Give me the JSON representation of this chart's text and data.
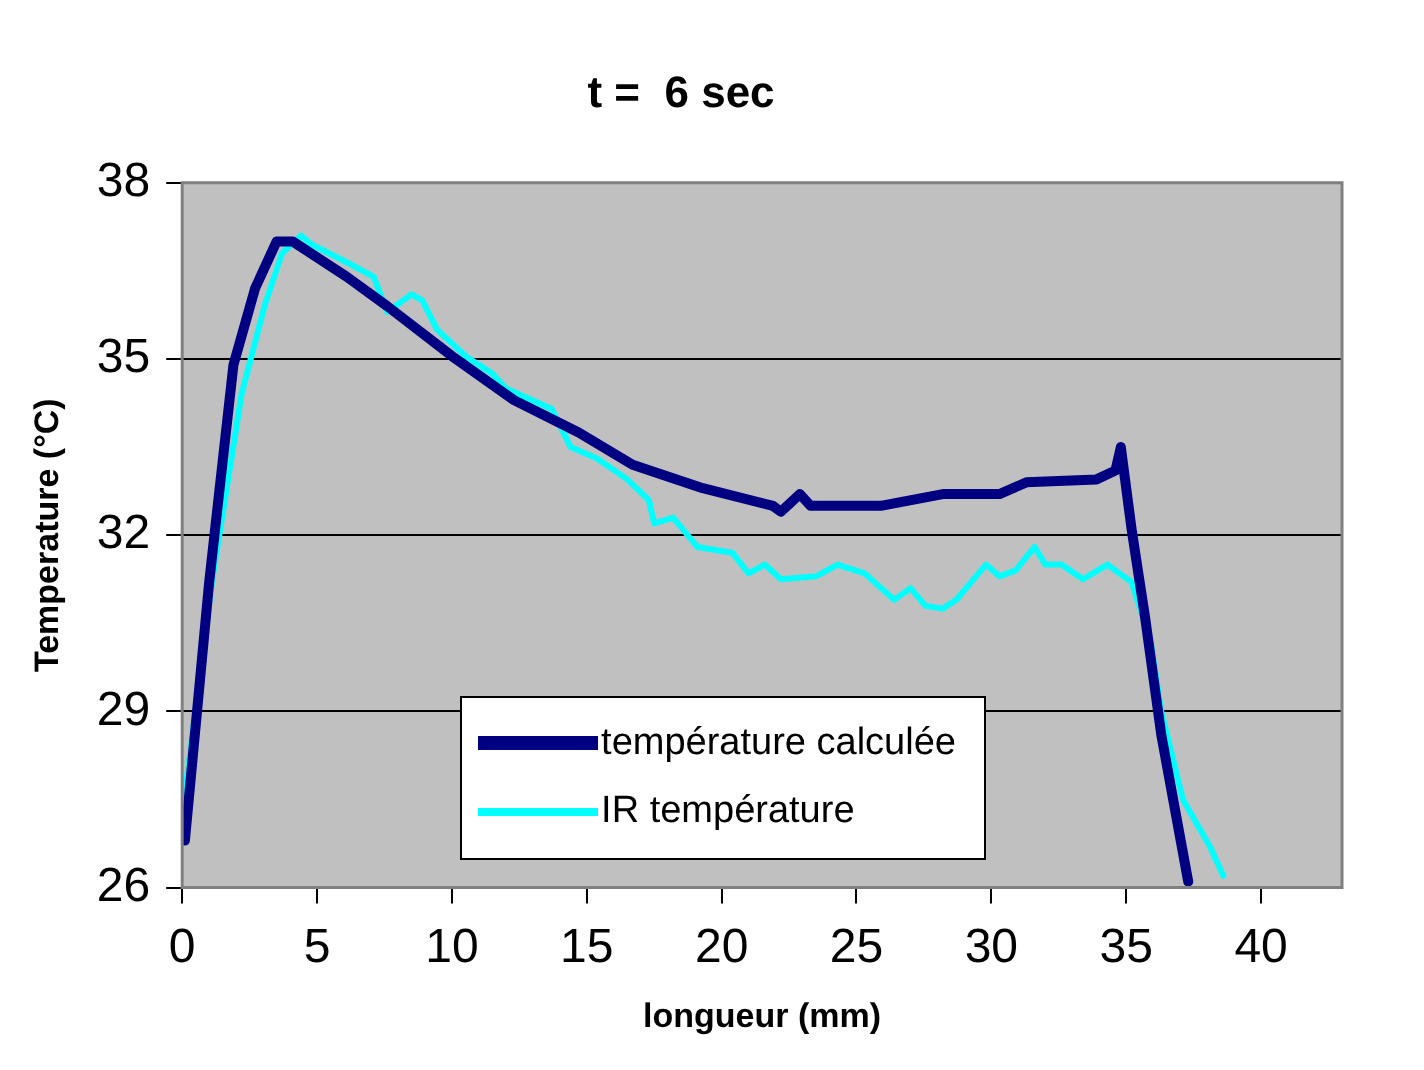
{
  "chart_data": {
    "type": "line",
    "title": "t =  6 sec",
    "xlabel": "longueur (mm)",
    "ylabel": "Temperature (°C)",
    "xlim": [
      0,
      43
    ],
    "xticks": [
      0,
      5,
      10,
      15,
      20,
      25,
      30,
      35,
      40
    ],
    "ylim": [
      26,
      38
    ],
    "yticks": [
      26,
      29,
      32,
      35,
      38
    ],
    "grid": "y",
    "legend": "bottom",
    "marker": "none",
    "line_style": "solid",
    "series": [
      {
        "name": "température calculée",
        "color": "#000080",
        "x": [
          0.1,
          1.0,
          1.9,
          2.7,
          3.5,
          4.1,
          6.1,
          7.6,
          10.0,
          12.3,
          14.7,
          16.7,
          19.3,
          21.9,
          22.2,
          22.9,
          23.3,
          25.9,
          28.2,
          30.3,
          31.3,
          33.9,
          34.6,
          34.8,
          35.2,
          35.7,
          36.3,
          37.3
        ],
        "values": [
          26.8,
          31.2,
          34.9,
          36.2,
          37.0,
          37.0,
          36.4,
          35.9,
          35.05,
          34.3,
          33.75,
          33.2,
          32.8,
          32.5,
          32.4,
          32.7,
          32.5,
          32.5,
          32.7,
          32.7,
          32.9,
          32.95,
          33.1,
          33.5,
          32.1,
          30.6,
          28.6,
          26.1
        ]
      },
      {
        "name": "IR température",
        "color": "#00ffff",
        "x": [
          0.1,
          1.1,
          2.2,
          3.05,
          3.7,
          4.4,
          4.8,
          6.3,
          7.1,
          7.6,
          8.5,
          8.9,
          9.45,
          10.5,
          11.5,
          12.0,
          13.7,
          14.4,
          15.4,
          16.5,
          17.3,
          17.5,
          18.2,
          19.1,
          20.4,
          21.0,
          21.6,
          22.2,
          23.5,
          24.3,
          25.3,
          26.4,
          27.0,
          27.55,
          28.2,
          28.7,
          29.8,
          30.3,
          30.9,
          31.6,
          32.0,
          32.6,
          33.4,
          34.3,
          35.2,
          35.9,
          36.3,
          37.1,
          38.1,
          38.6
        ],
        "values": [
          27.6,
          31.2,
          34.4,
          35.9,
          36.8,
          37.1,
          36.95,
          36.6,
          36.4,
          35.8,
          36.1,
          36.0,
          35.5,
          35.05,
          34.75,
          34.5,
          34.15,
          33.5,
          33.3,
          32.95,
          32.6,
          32.2,
          32.3,
          31.8,
          31.7,
          31.35,
          31.5,
          31.25,
          31.3,
          31.5,
          31.35,
          30.9,
          31.1,
          30.8,
          30.75,
          30.9,
          31.5,
          31.3,
          31.4,
          31.8,
          31.5,
          31.5,
          31.25,
          31.5,
          31.2,
          30.2,
          29.0,
          27.5,
          26.7,
          26.2
        ]
      }
    ]
  }
}
